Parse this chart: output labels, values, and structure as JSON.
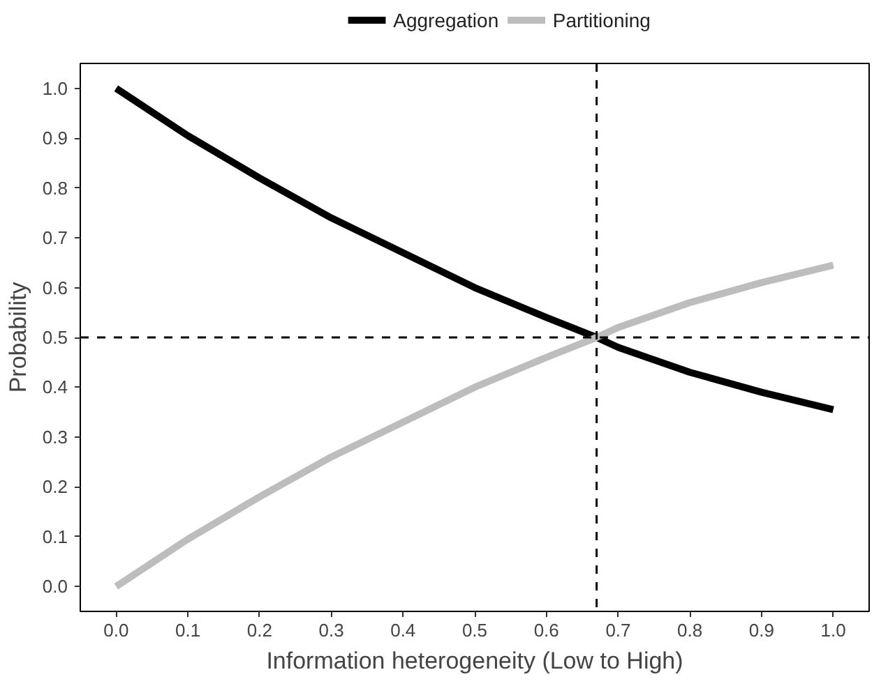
{
  "chart_data": {
    "type": "line",
    "xlabel": "Information heterogeneity (Low to High)",
    "ylabel": "Probability",
    "x": [
      0,
      0.1,
      0.2,
      0.3,
      0.4,
      0.5,
      0.6,
      0.67,
      0.7,
      0.8,
      0.9,
      1.0
    ],
    "series": [
      {
        "name": "Aggregation",
        "color": "#000000",
        "values": [
          1.0,
          0.905,
          0.82,
          0.74,
          0.67,
          0.6,
          0.54,
          0.5,
          0.48,
          0.43,
          0.39,
          0.355
        ]
      },
      {
        "name": "Partitioning",
        "color": "#bdbdbd",
        "values": [
          0.0,
          0.095,
          0.18,
          0.26,
          0.33,
          0.4,
          0.46,
          0.5,
          0.52,
          0.57,
          0.61,
          0.645
        ]
      }
    ],
    "xlim": [
      -0.05,
      1.05
    ],
    "ylim": [
      -0.05,
      1.05
    ],
    "xticks": [
      {
        "value": 0,
        "label": "0.0"
      },
      0.1,
      0.2,
      0.3,
      0.4,
      0.5,
      0.6,
      0.7,
      0.8,
      0.9,
      {
        "value": 1,
        "label": "1.0"
      }
    ],
    "yticks": [
      {
        "value": 0,
        "label": "0.0"
      },
      0.1,
      0.2,
      0.3,
      0.4,
      0.5,
      0.6,
      0.7,
      0.8,
      0.9,
      {
        "value": 1,
        "label": "1.0"
      }
    ],
    "ref_lines": [
      {
        "axis": "x",
        "value": 0.67,
        "line_style": "dashed"
      },
      {
        "axis": "y",
        "value": 0.5,
        "line_style": "dashed"
      }
    ],
    "grid": false,
    "legend": "top",
    "line_style": "solid",
    "marker": "none"
  }
}
